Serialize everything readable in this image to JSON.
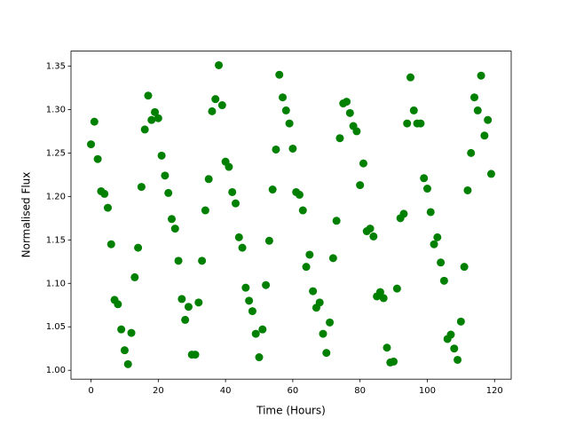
{
  "chart_data": {
    "type": "scatter",
    "xlabel": "Time (Hours)",
    "ylabel": "Normalised Flux",
    "x": [
      0,
      1,
      2,
      3,
      4,
      5,
      6,
      7,
      8,
      9,
      10,
      11,
      12,
      13,
      14,
      15,
      16,
      17,
      18,
      19,
      20,
      21,
      22,
      23,
      24,
      25,
      26,
      27,
      28,
      29,
      30,
      31,
      32,
      33,
      34,
      35,
      36,
      37,
      38,
      39,
      40,
      41,
      42,
      43,
      44,
      45,
      46,
      47,
      48,
      49,
      50,
      51,
      52,
      53,
      54,
      55,
      56,
      57,
      58,
      59,
      60,
      61,
      62,
      63,
      64,
      65,
      66,
      67,
      68,
      69,
      70,
      71,
      72,
      73,
      74,
      75,
      76,
      77,
      78,
      79,
      80,
      81,
      82,
      83,
      84,
      85,
      86,
      87,
      88,
      89,
      90,
      91,
      92,
      93,
      94,
      95,
      96,
      97,
      98,
      99,
      100,
      101,
      102,
      103,
      104,
      105,
      106,
      107,
      108,
      109,
      110,
      111,
      112,
      113,
      114,
      115,
      116,
      117,
      118,
      119
    ],
    "values": [
      1.26,
      1.286,
      1.243,
      1.206,
      1.203,
      1.187,
      1.145,
      1.081,
      1.076,
      1.047,
      1.023,
      1.007,
      1.043,
      1.107,
      1.141,
      1.211,
      1.277,
      1.316,
      1.288,
      1.297,
      1.29,
      1.247,
      1.224,
      1.204,
      1.174,
      1.163,
      1.126,
      1.082,
      1.058,
      1.073,
      1.018,
      1.018,
      1.078,
      1.126,
      1.184,
      1.22,
      1.298,
      1.312,
      1.351,
      1.305,
      1.24,
      1.234,
      1.205,
      1.192,
      1.153,
      1.141,
      1.095,
      1.08,
      1.068,
      1.042,
      1.015,
      1.047,
      1.098,
      1.149,
      1.208,
      1.254,
      1.34,
      1.314,
      1.299,
      1.284,
      1.255,
      1.205,
      1.202,
      1.184,
      1.119,
      1.133,
      1.091,
      1.072,
      1.078,
      1.042,
      1.02,
      1.055,
      1.129,
      1.172,
      1.267,
      1.307,
      1.309,
      1.296,
      1.281,
      1.275,
      1.213,
      1.238,
      1.16,
      1.163,
      1.154,
      1.085,
      1.09,
      1.083,
      1.026,
      1.009,
      1.01,
      1.094,
      1.175,
      1.18,
      1.284,
      1.337,
      1.299,
      1.284,
      1.284,
      1.221,
      1.209,
      1.182,
      1.145,
      1.153,
      1.124,
      1.103,
      1.036,
      1.041,
      1.025,
      1.012,
      1.056,
      1.119,
      1.207,
      1.25,
      1.314,
      1.299,
      1.339,
      1.27,
      1.288,
      1.226
    ],
    "color": "#008000",
    "xlim": [
      -5.95,
      124.95
    ],
    "xticks": [
      0,
      20,
      40,
      60,
      80,
      100,
      120
    ],
    "ylim": [
      0.9898,
      1.3672
    ],
    "yticks": [
      {
        "value": 1.0,
        "label": "1.00"
      },
      1.05,
      {
        "value": 1.1,
        "label": "1.10"
      },
      1.15,
      {
        "value": 1.2,
        "label": "1.20"
      },
      1.25,
      {
        "value": 1.3,
        "label": "1.30"
      },
      1.35
    ],
    "grid": false
  }
}
